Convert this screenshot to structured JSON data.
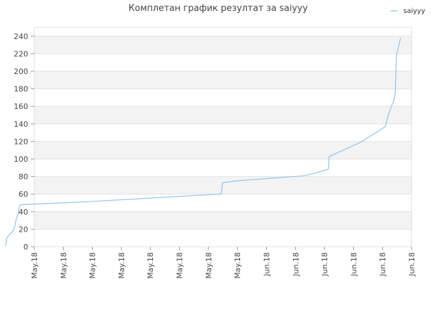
{
  "chart_data": {
    "type": "line",
    "title": "Комплетан график резултат за saiyyy",
    "legend": {
      "position": "top-right",
      "entries": [
        "saiyyy"
      ]
    },
    "xlabel": "",
    "ylabel": "",
    "ylim": [
      0,
      250
    ],
    "y_ticks": [
      0,
      20,
      40,
      60,
      80,
      100,
      120,
      140,
      160,
      180,
      200,
      220,
      240
    ],
    "x_tick_labels": [
      "May.18",
      "May.18",
      "May.18",
      "May.18",
      "May.18",
      "May.18",
      "May.18",
      "May.18",
      "Jun.18",
      "Jun.18",
      "Jun.18",
      "Jun.18",
      "Jun.18",
      "Jun.18"
    ],
    "grid": true,
    "band_colors": [
      "#f3f3f3",
      "#ffffff"
    ],
    "series": [
      {
        "name": "saiyyy",
        "color": "#8cc4ee",
        "x": [
          0.0,
          0.1,
          0.15,
          0.25,
          1.05,
          1.3,
          1.35,
          1.6,
          1.7,
          1.85,
          2.0,
          10.0,
          28.0,
          28.1,
          28.2,
          28.3,
          30.0,
          39.0,
          42.0,
          42.1,
          42.2,
          46.5,
          49.5,
          49.9,
          50.3,
          50.6,
          50.8,
          50.9,
          51.0,
          51.5
        ],
        "values": [
          1,
          5,
          10,
          11,
          19,
          26,
          30,
          36,
          39,
          47,
          48,
          51,
          60,
          60,
          66,
          73,
          75,
          81,
          88,
          89,
          103,
          120,
          137,
          150,
          160,
          166,
          175,
          205,
          220,
          238
        ]
      }
    ]
  }
}
